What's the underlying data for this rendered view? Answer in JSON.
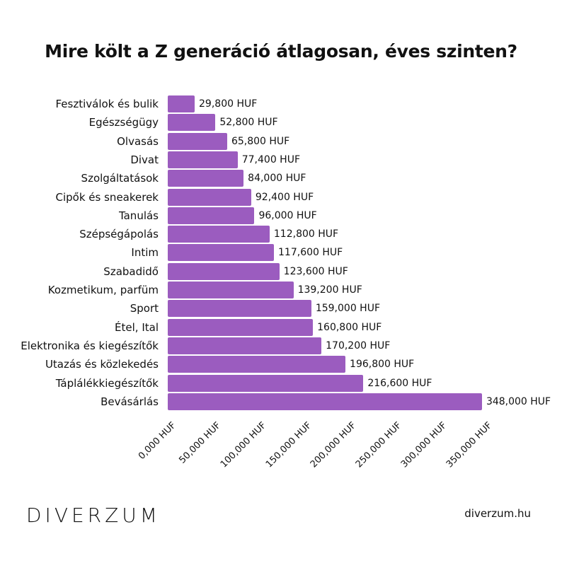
{
  "chart_data": {
    "type": "bar",
    "orientation": "horizontal",
    "title": "Mire költ a Z generáció átlagosan, éves szinten?",
    "categories": [
      "Fesztiválok és bulik",
      "Egészségügy",
      "Olvasás",
      "Divat",
      "Szolgáltatások",
      "Cipők és sneakerek",
      "Tanulás",
      "Szépségápolás",
      "Intim",
      "Szabadidő",
      "Kozmetikum, parfüm",
      "Sport",
      "Étel, Ital",
      "Elektronika és kiegészítők",
      "Utazás és közlekedés",
      "Táplálékkiegészítők",
      "Bevásárlás"
    ],
    "values": [
      29800,
      52800,
      65800,
      77400,
      84000,
      92400,
      96000,
      112800,
      117600,
      123600,
      139200,
      159000,
      160800,
      170200,
      196800,
      216600,
      348000
    ],
    "value_labels": [
      "29,800 HUF",
      "52,800 HUF",
      "65,800 HUF",
      "77,400 HUF",
      "84,000 HUF",
      "92,400 HUF",
      "96,000 HUF",
      "112,800 HUF",
      "117,600 HUF",
      "123,600 HUF",
      "139,200 HUF",
      "159,000 HUF",
      "160,800 HUF",
      "170,200 HUF",
      "196,800 HUF",
      "216,600 HUF",
      "348,000 HUF"
    ],
    "xlim": [
      0,
      350000
    ],
    "xticks": [
      0,
      50000,
      100000,
      150000,
      200000,
      250000,
      300000,
      350000
    ],
    "xtick_labels": [
      "0,000 HUF",
      "50,000 HUF",
      "100,000 HUF",
      "150,000 HUF",
      "200,000 HUF",
      "250,000 HUF",
      "300,000 HUF",
      "350,000 HUF"
    ],
    "xlabel": "",
    "ylabel": "",
    "grid": false,
    "bar_color": "#9b5cbf"
  },
  "footer": {
    "logo": "DIVERZUM",
    "site": "diverzum.hu"
  }
}
